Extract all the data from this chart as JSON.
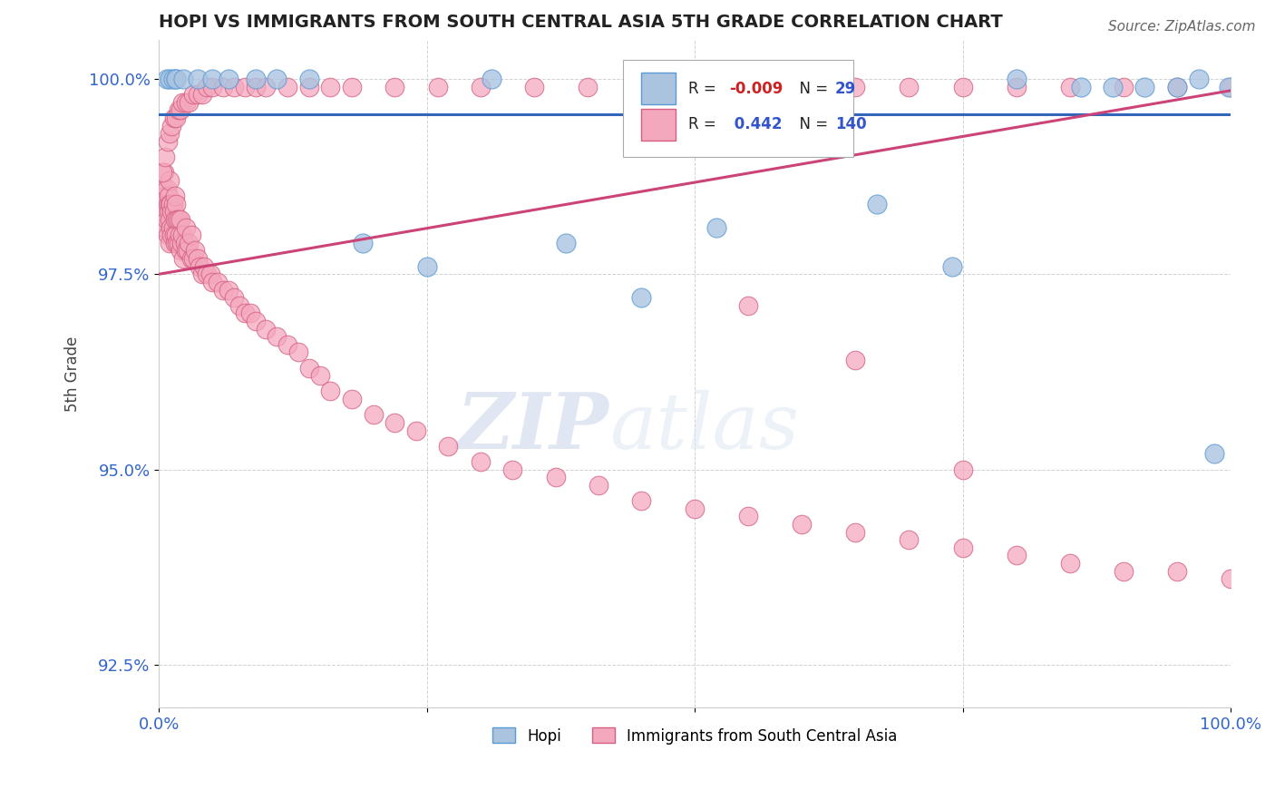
{
  "title": "HOPI VS IMMIGRANTS FROM SOUTH CENTRAL ASIA 5TH GRADE CORRELATION CHART",
  "source_text": "Source: ZipAtlas.com",
  "ylabel": "5th Grade",
  "watermark_zip": "ZIP",
  "watermark_atlas": "atlas",
  "xlim": [
    0.0,
    1.0
  ],
  "ylim": [
    0.9195,
    1.005
  ],
  "yticks": [
    0.925,
    0.95,
    0.975,
    1.0
  ],
  "ytick_labels": [
    "92.5%",
    "95.0%",
    "97.5%",
    "100.0%"
  ],
  "xticks": [
    0.0,
    0.25,
    0.5,
    0.75,
    1.0
  ],
  "xtick_labels": [
    "0.0%",
    "",
    "",
    "",
    "100.0%"
  ],
  "legend_r1": "-0.009",
  "legend_n1": "29",
  "legend_r2": "0.442",
  "legend_n2": "140",
  "legend_label1": "Hopi",
  "legend_label2": "Immigrants from South Central Asia",
  "hopi_color": "#aac4e0",
  "immigrants_color": "#f4a8be",
  "hopi_edge_color": "#5b9bd5",
  "immigrants_edge_color": "#d45f80",
  "hopi_trend_color": "#3366bb",
  "immigrants_trend_color": "#cc4477",
  "hopi_trend_y0": 0.9955,
  "hopi_trend_y1": 0.9955,
  "immigrants_trend_y0": 0.975,
  "immigrants_trend_y1": 0.9985,
  "hopi_x": [
    0.007,
    0.01,
    0.013,
    0.016,
    0.016,
    0.023,
    0.036,
    0.05,
    0.065,
    0.09,
    0.11,
    0.14,
    0.19,
    0.25,
    0.31,
    0.38,
    0.45,
    0.52,
    0.59,
    0.67,
    0.74,
    0.8,
    0.86,
    0.89,
    0.92,
    0.95,
    0.97,
    0.985,
    0.998
  ],
  "hopi_y": [
    1.0,
    1.0,
    1.0,
    1.0,
    1.0,
    1.0,
    1.0,
    1.0,
    1.0,
    1.0,
    1.0,
    1.0,
    0.979,
    0.976,
    1.0,
    0.979,
    0.972,
    0.981,
    0.999,
    0.984,
    0.976,
    1.0,
    0.999,
    0.999,
    0.999,
    0.999,
    1.0,
    0.952,
    0.999
  ],
  "imm_x": [
    0.003,
    0.004,
    0.005,
    0.005,
    0.005,
    0.006,
    0.006,
    0.007,
    0.007,
    0.008,
    0.008,
    0.009,
    0.009,
    0.01,
    0.01,
    0.01,
    0.01,
    0.011,
    0.011,
    0.012,
    0.012,
    0.013,
    0.013,
    0.014,
    0.014,
    0.015,
    0.015,
    0.015,
    0.016,
    0.016,
    0.017,
    0.017,
    0.018,
    0.018,
    0.019,
    0.02,
    0.02,
    0.021,
    0.022,
    0.023,
    0.024,
    0.025,
    0.025,
    0.027,
    0.028,
    0.03,
    0.03,
    0.032,
    0.034,
    0.036,
    0.038,
    0.04,
    0.042,
    0.045,
    0.048,
    0.05,
    0.055,
    0.06,
    0.065,
    0.07,
    0.075,
    0.08,
    0.085,
    0.09,
    0.1,
    0.11,
    0.12,
    0.13,
    0.14,
    0.15,
    0.16,
    0.18,
    0.2,
    0.22,
    0.24,
    0.27,
    0.3,
    0.33,
    0.37,
    0.41,
    0.45,
    0.5,
    0.55,
    0.6,
    0.65,
    0.7,
    0.75,
    0.8,
    0.85,
    0.9,
    0.95,
    1.0,
    0.003,
    0.006,
    0.008,
    0.01,
    0.012,
    0.014,
    0.016,
    0.018,
    0.02,
    0.022,
    0.025,
    0.028,
    0.032,
    0.036,
    0.04,
    0.045,
    0.05,
    0.06,
    0.07,
    0.08,
    0.09,
    0.1,
    0.12,
    0.14,
    0.16,
    0.18,
    0.22,
    0.26,
    0.3,
    0.35,
    0.4,
    0.45,
    0.5,
    0.55,
    0.6,
    0.65,
    0.7,
    0.75,
    0.8,
    0.85,
    0.9,
    0.95,
    1.0,
    0.55,
    0.65,
    0.75
  ],
  "imm_y": [
    0.981,
    0.984,
    0.983,
    0.986,
    0.988,
    0.981,
    0.985,
    0.982,
    0.986,
    0.98,
    0.984,
    0.983,
    0.985,
    0.979,
    0.982,
    0.984,
    0.987,
    0.981,
    0.984,
    0.98,
    0.983,
    0.981,
    0.984,
    0.98,
    0.983,
    0.979,
    0.982,
    0.985,
    0.98,
    0.984,
    0.979,
    0.982,
    0.979,
    0.982,
    0.98,
    0.978,
    0.982,
    0.979,
    0.98,
    0.977,
    0.979,
    0.978,
    0.981,
    0.978,
    0.979,
    0.977,
    0.98,
    0.977,
    0.978,
    0.977,
    0.976,
    0.975,
    0.976,
    0.975,
    0.975,
    0.974,
    0.974,
    0.973,
    0.973,
    0.972,
    0.971,
    0.97,
    0.97,
    0.969,
    0.968,
    0.967,
    0.966,
    0.965,
    0.963,
    0.962,
    0.96,
    0.959,
    0.957,
    0.956,
    0.955,
    0.953,
    0.951,
    0.95,
    0.949,
    0.948,
    0.946,
    0.945,
    0.944,
    0.943,
    0.942,
    0.941,
    0.94,
    0.939,
    0.938,
    0.937,
    0.937,
    0.936,
    0.988,
    0.99,
    0.992,
    0.993,
    0.994,
    0.995,
    0.995,
    0.996,
    0.996,
    0.997,
    0.997,
    0.997,
    0.998,
    0.998,
    0.998,
    0.999,
    0.999,
    0.999,
    0.999,
    0.999,
    0.999,
    0.999,
    0.999,
    0.999,
    0.999,
    0.999,
    0.999,
    0.999,
    0.999,
    0.999,
    0.999,
    0.999,
    0.999,
    0.999,
    0.999,
    0.999,
    0.999,
    0.999,
    0.999,
    0.999,
    0.999,
    0.999,
    0.999,
    0.971,
    0.964,
    0.95
  ]
}
